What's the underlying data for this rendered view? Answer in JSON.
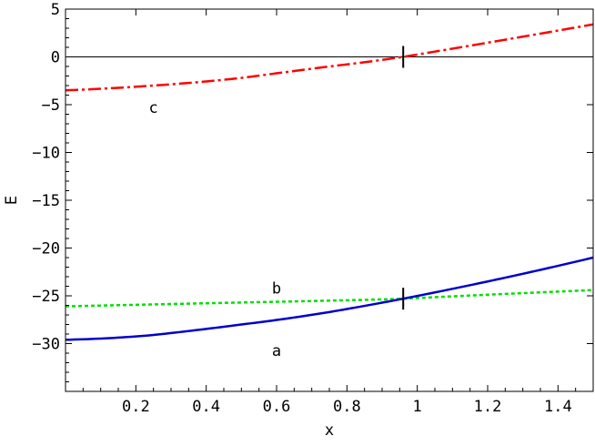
{
  "chart_data": {
    "type": "line",
    "title": "",
    "xlabel": "x",
    "ylabel": "E",
    "xlim": [
      0,
      1.5
    ],
    "ylim": [
      -35,
      5
    ],
    "x_ticks": [
      0.2,
      0.4,
      0.6,
      0.8,
      1,
      1.2,
      1.4
    ],
    "x_tick_labels": [
      "0.2",
      "0.4",
      "0.6",
      "0.8",
      "1",
      "1.2",
      "1.4"
    ],
    "y_ticks": [
      5,
      0,
      -5,
      -10,
      -15,
      -20,
      -25,
      -30
    ],
    "y_tick_labels": [
      "5",
      "0",
      "-5",
      "-10",
      "-15",
      "-20",
      "-25",
      "-30"
    ],
    "reference_line_y": 0,
    "series": [
      {
        "label": "c",
        "style": "dash-dot",
        "color": "#ff0000",
        "x": [
          0,
          0.25,
          0.5,
          0.75,
          0.96,
          1.25,
          1.5
        ],
        "y": [
          -3.5,
          -3.0,
          -2.2,
          -1.0,
          0.0,
          1.8,
          3.4
        ]
      },
      {
        "label": "b",
        "style": "dotted",
        "color": "#00e000",
        "x": [
          0,
          0.25,
          0.5,
          0.75,
          0.96,
          1.25,
          1.5
        ],
        "y": [
          -26.1,
          -25.9,
          -25.7,
          -25.5,
          -25.3,
          -24.8,
          -24.4
        ]
      },
      {
        "label": "a",
        "style": "solid",
        "color": "#0000cc",
        "x": [
          0,
          0.25,
          0.5,
          0.75,
          0.96,
          1.25,
          1.5
        ],
        "y": [
          -29.6,
          -29.1,
          -28.0,
          -26.7,
          -25.3,
          -23.1,
          -21.0
        ]
      }
    ],
    "markers": [
      {
        "x": 0.96,
        "y": 0
      },
      {
        "x": 0.96,
        "y": -25.3
      }
    ],
    "annotations": [
      {
        "text": "c",
        "x": 0.25,
        "y": -5.3
      },
      {
        "text": "b",
        "x": 0.6,
        "y": -24.2
      },
      {
        "text": "a",
        "x": 0.6,
        "y": -30.7
      }
    ],
    "grid": false,
    "legend": "none"
  }
}
